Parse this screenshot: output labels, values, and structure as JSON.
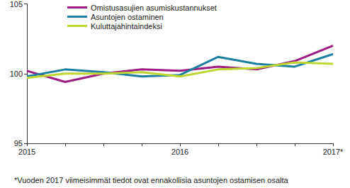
{
  "chart_data": {
    "type": "line",
    "categories": [
      "2015",
      null,
      null,
      null,
      "2016",
      null,
      null,
      null,
      "2017*"
    ],
    "series": [
      {
        "name": "Omistusasujien asumiskustannukset",
        "color": "#9c1c84",
        "values": [
          100.2,
          99.4,
          100.0,
          100.3,
          100.2,
          100.5,
          100.3,
          100.9,
          102.0
        ]
      },
      {
        "name": "Asuntojen ostaminen",
        "color": "#1a7fa0",
        "values": [
          99.8,
          100.3,
          100.1,
          99.8,
          99.9,
          101.2,
          100.7,
          100.5,
          101.4
        ]
      },
      {
        "name": "Kuluttajahintaindeksi",
        "color": "#bfd630",
        "values": [
          99.7,
          100.0,
          100.0,
          100.1,
          99.8,
          100.3,
          100.4,
          100.8,
          100.7
        ]
      }
    ],
    "ylim": [
      95,
      105
    ],
    "yticks": [
      95,
      100,
      105
    ],
    "grid": false,
    "legend": "upper left",
    "annotations": [
      "*Vuoden 2017 viimeisimmät tiedot ovat ennakollisia asuntojen ostamisen osalta"
    ]
  }
}
